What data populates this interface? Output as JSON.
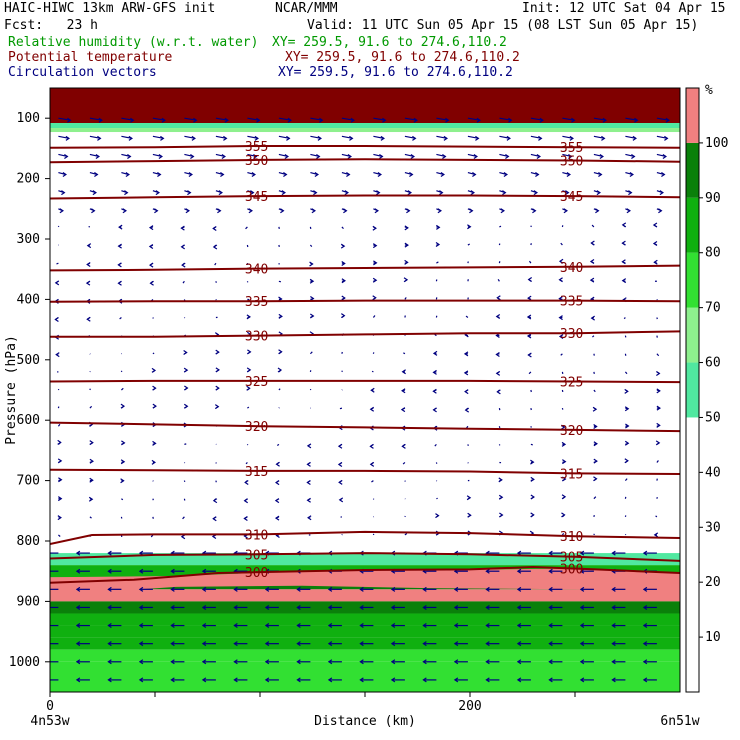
{
  "header": {
    "title_left": "HAIC-HIWC 13km ARW-GFS init",
    "title_mid": "NCAR/MMM",
    "init": "Init: 12 UTC Sat 04 Apr 15",
    "fcst": "Fcst:   23 h",
    "valid": "Valid: 11 UTC Sun 05 Apr 15 (08 LST Sun 05 Apr 15)",
    "fields": [
      {
        "name": "Relative humidity (w.r.t. water)",
        "xy": "XY= 259.5, 91.6 to 274.6,110.2",
        "color": "#009900"
      },
      {
        "name": "Potential temperature",
        "xy": "XY= 259.5, 91.6 to 274.6,110.2",
        "color": "#800000"
      },
      {
        "name": "Circulation vectors",
        "xy": "XY= 259.5, 91.6 to 274.6,110.2",
        "color": "#000080"
      }
    ]
  },
  "colors": {
    "rh": [
      "#ffffff",
      "#ffffff",
      "#ffffff",
      "#ffffff",
      "#ffffff",
      "#50e8a0",
      "#8ef08e",
      "#32e032",
      "#10b010",
      "#0a800a",
      "#f08080"
    ],
    "theta": "#800000",
    "vector": "#000080",
    "top_band": "#800000"
  },
  "chart_data": {
    "type": "cross-section",
    "xlabel": "Distance (km)",
    "ylabel": "Pressure (hPa)",
    "xlim": [
      0,
      300
    ],
    "ylim": [
      1050,
      50
    ],
    "x_ticks": [
      0,
      50,
      100,
      150,
      200,
      250
    ],
    "x_tick_labels": [
      "0",
      "200"
    ],
    "y_tick_labels": [
      100,
      200,
      300,
      400,
      500,
      600,
      700,
      800,
      900,
      1000
    ],
    "x_end_labels": [
      "4n53w",
      "6n51w"
    ],
    "colorbar": {
      "unit": "%",
      "levels": [
        0,
        10,
        20,
        30,
        40,
        50,
        60,
        70,
        80,
        90,
        100
      ],
      "labels": [
        10,
        20,
        30,
        40,
        50,
        60,
        70,
        80,
        90,
        100
      ]
    },
    "theta_contours": [
      {
        "label": "355",
        "points": [
          [
            0,
            149
          ],
          [
            50,
            148
          ],
          [
            100,
            146
          ],
          [
            150,
            146
          ],
          [
            200,
            147
          ],
          [
            250,
            148
          ],
          [
            300,
            149
          ]
        ]
      },
      {
        "label": "350",
        "points": [
          [
            0,
            173
          ],
          [
            50,
            171
          ],
          [
            100,
            169
          ],
          [
            150,
            168
          ],
          [
            200,
            169
          ],
          [
            250,
            170
          ],
          [
            300,
            172
          ]
        ]
      },
      {
        "label": "345",
        "points": [
          [
            0,
            233
          ],
          [
            50,
            231
          ],
          [
            100,
            229
          ],
          [
            150,
            228
          ],
          [
            200,
            228
          ],
          [
            250,
            229
          ],
          [
            300,
            231
          ]
        ]
      },
      {
        "label": "340",
        "points": [
          [
            0,
            352
          ],
          [
            50,
            351
          ],
          [
            100,
            349
          ],
          [
            150,
            348
          ],
          [
            200,
            347
          ],
          [
            250,
            346
          ],
          [
            300,
            344
          ]
        ]
      },
      {
        "label": "335",
        "points": [
          [
            0,
            404
          ],
          [
            50,
            403
          ],
          [
            100,
            403
          ],
          [
            150,
            402
          ],
          [
            200,
            402
          ],
          [
            250,
            402
          ],
          [
            300,
            403
          ]
        ]
      },
      {
        "label": "330",
        "points": [
          [
            0,
            462
          ],
          [
            50,
            462
          ],
          [
            100,
            460
          ],
          [
            150,
            458
          ],
          [
            200,
            456
          ],
          [
            250,
            456
          ],
          [
            300,
            453
          ]
        ]
      },
      {
        "label": "325",
        "points": [
          [
            0,
            536
          ],
          [
            50,
            535
          ],
          [
            100,
            535
          ],
          [
            150,
            535
          ],
          [
            200,
            535
          ],
          [
            250,
            536
          ],
          [
            300,
            537
          ]
        ]
      },
      {
        "label": "320",
        "points": [
          [
            0,
            604
          ],
          [
            50,
            607
          ],
          [
            100,
            610
          ],
          [
            150,
            612
          ],
          [
            200,
            614
          ],
          [
            250,
            616
          ],
          [
            300,
            618
          ]
        ]
      },
      {
        "label": "315",
        "points": [
          [
            0,
            682
          ],
          [
            50,
            683
          ],
          [
            100,
            684
          ],
          [
            150,
            684
          ],
          [
            200,
            685
          ],
          [
            250,
            688
          ],
          [
            300,
            689
          ]
        ]
      },
      {
        "label": "310",
        "points": [
          [
            0,
            805
          ],
          [
            20,
            790
          ],
          [
            50,
            789
          ],
          [
            100,
            789
          ],
          [
            150,
            785
          ],
          [
            200,
            787
          ],
          [
            250,
            792
          ],
          [
            300,
            795
          ]
        ]
      },
      {
        "label": "305",
        "points": [
          [
            0,
            829
          ],
          [
            50,
            823
          ],
          [
            100,
            822
          ],
          [
            150,
            820
          ],
          [
            200,
            822
          ],
          [
            250,
            826
          ],
          [
            300,
            833
          ]
        ]
      },
      {
        "label": "300",
        "points": [
          [
            0,
            869
          ],
          [
            40,
            864
          ],
          [
            80,
            853
          ],
          [
            150,
            848
          ],
          [
            200,
            847
          ],
          [
            230,
            843
          ],
          [
            260,
            847
          ],
          [
            300,
            853
          ]
        ]
      }
    ],
    "rh_low_level": {
      "pressure": [
        820,
        840,
        860,
        880,
        900,
        920,
        940,
        960,
        980,
        1000
      ],
      "rh": [
        55,
        80,
        92,
        100,
        92,
        88,
        84,
        80,
        78,
        76
      ]
    },
    "wind_summary": {
      "upper_levels": "eastward arrows above ~250 hPa",
      "low_levels": "westward arrows below ~820 hPa"
    },
    "grid": false
  }
}
